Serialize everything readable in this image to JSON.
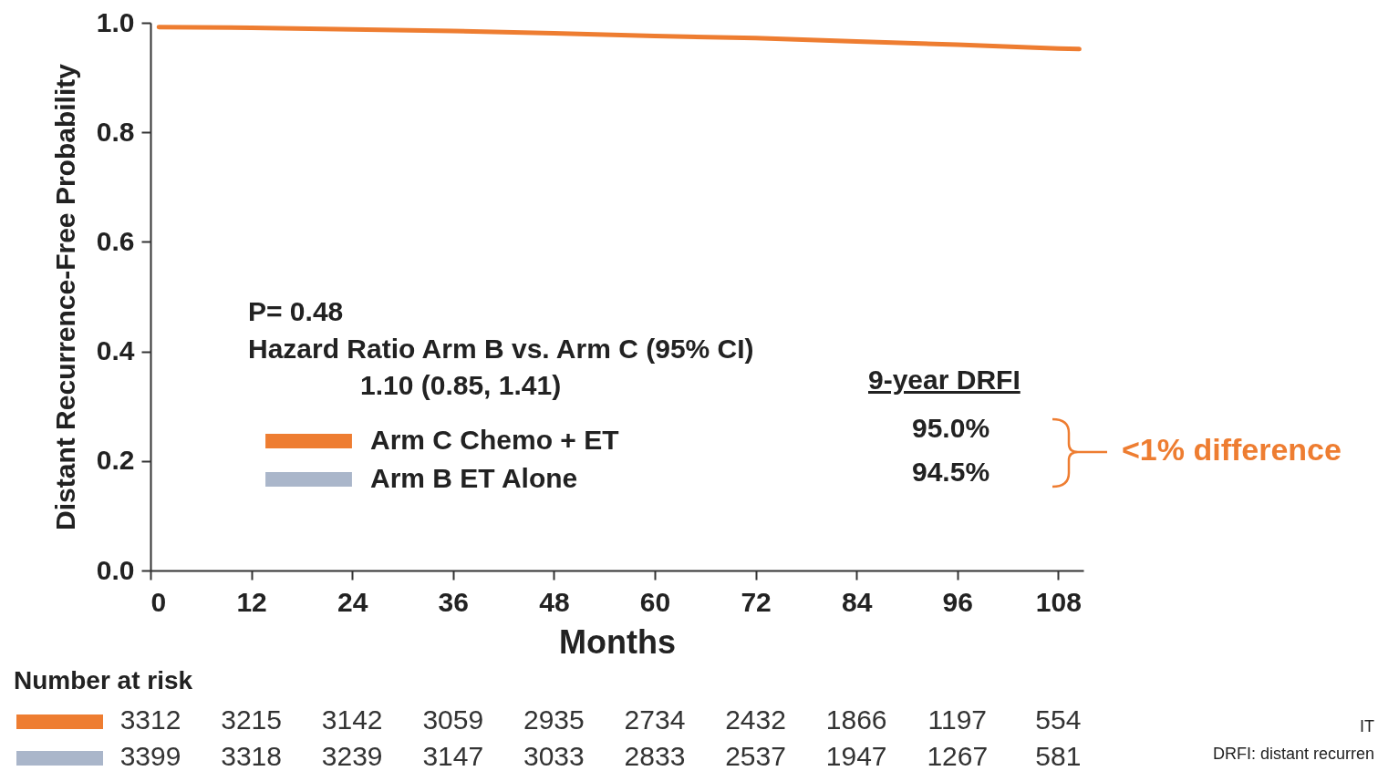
{
  "chart_data": {
    "type": "line",
    "xlabel": "Months",
    "ylabel": "Distant Recurrence-Free Probability",
    "xlim": [
      0,
      111
    ],
    "ylim": [
      0,
      1
    ],
    "xticks": [
      0,
      12,
      24,
      36,
      48,
      60,
      72,
      84,
      96,
      108
    ],
    "yticks": [
      {
        "value": 0,
        "label": "0.0"
      },
      0.2,
      0.4,
      0.6,
      0.8,
      {
        "value": 1,
        "label": "1.0"
      }
    ],
    "x": [
      1,
      12,
      24,
      36,
      48,
      60,
      72,
      84,
      96,
      108,
      110.5
    ],
    "grid": false,
    "legend": "bottom left",
    "line_style": "solid",
    "marker": "none",
    "series": [
      {
        "name": "Arm C Chemo + ET",
        "color": "#ee7d31",
        "values": [
          0.992,
          0.991,
          0.988,
          0.985,
          0.981,
          0.976,
          0.972,
          0.966,
          0.96,
          0.953,
          0.952
        ]
      },
      {
        "name": "Arm B ET Alone",
        "color": "#aab6ca",
        "values": [
          null,
          null,
          null,
          null,
          null,
          null,
          null,
          null,
          null,
          null,
          null
        ]
      }
    ],
    "annotations": [
      "P= 0.48",
      "Hazard Ratio Arm B vs. Arm C (95% CI)",
      "1.10 (0.85, 1.41)",
      "9-year DRFI",
      "95.0%",
      "94.5%",
      "<1% difference",
      "Number at risk",
      "3312 3215 3142 3059 2935 2734 2432 1866 1197 554",
      "3399 3318 3239 3147 3033 2833 2537 1947 1267 581",
      "IT",
      "DRFI: distant recurren"
    ]
  }
}
